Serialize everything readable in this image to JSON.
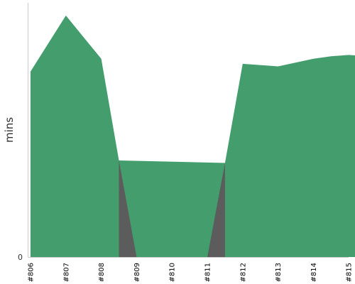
{
  "chart_data": {
    "type": "area",
    "ylabel": "mins",
    "categories": [
      "#806",
      "#807",
      "#808",
      "#809",
      "#810",
      "#811",
      "#812",
      "#813",
      "#814",
      "#815"
    ],
    "y_ticks": [
      "0"
    ],
    "ylim": [
      0,
      100
    ],
    "grid": false,
    "legend": "none",
    "series": [
      {
        "color": "#449d6d",
        "points": [
          {
            "x": 0,
            "y": 73
          },
          {
            "x": 1,
            "y": 95
          },
          {
            "x": 2,
            "y": 78
          },
          {
            "x": 2.5,
            "y": 38
          },
          {
            "x": 5.5,
            "y": 37
          },
          {
            "x": 6,
            "y": 76
          },
          {
            "x": 7,
            "y": 75
          },
          {
            "x": 8,
            "y": 78
          },
          {
            "x": 8.5,
            "y": 79
          },
          {
            "x": 9,
            "y": 79.5
          },
          {
            "x": 9.5,
            "y": 79
          },
          {
            "x": 10,
            "y": 77.5
          }
        ]
      },
      {
        "color": "#5c5c5c",
        "points": [
          {
            "x": 2.5,
            "y": 38
          },
          {
            "x": 3,
            "y": 0
          },
          {
            "x": 4,
            "y": 0
          },
          {
            "x": 5,
            "y": 0
          },
          {
            "x": 5.5,
            "y": 37
          }
        ]
      }
    ]
  }
}
